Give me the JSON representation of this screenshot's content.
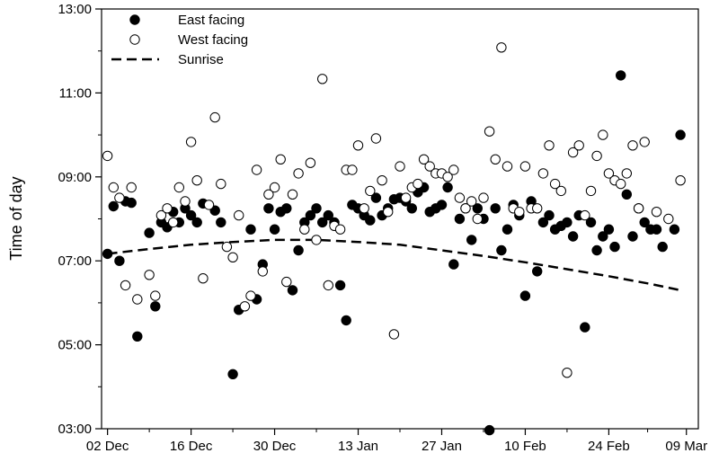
{
  "chart_data": {
    "type": "scatter",
    "title": "",
    "xlabel": "",
    "ylabel": "Time of day",
    "x_axis": {
      "type": "date",
      "range": [
        "2020-12-01",
        "2021-03-11"
      ],
      "ticks": [
        {
          "date": "2020-12-02",
          "label": "02 Dec"
        },
        {
          "date": "2020-12-16",
          "label": "16 Dec"
        },
        {
          "date": "2020-12-30",
          "label": "30 Dec"
        },
        {
          "date": "2021-01-13",
          "label": "13 Jan"
        },
        {
          "date": "2021-01-27",
          "label": "27 Jan"
        },
        {
          "date": "2021-02-10",
          "label": "10 Feb"
        },
        {
          "date": "2021-02-24",
          "label": "24 Feb"
        },
        {
          "date": "2021-03-09",
          "label": "09 Mar"
        }
      ]
    },
    "y_axis": {
      "unit": "time",
      "range": [
        "03:00",
        "13:00"
      ],
      "ticks": [
        "03:00",
        "05:00",
        "07:00",
        "09:00",
        "11:00",
        "13:00"
      ]
    },
    "grid": false,
    "legend": {
      "position": "top-left",
      "items": [
        {
          "label": "East facing",
          "marker": "filled-circle"
        },
        {
          "label": "West facing",
          "marker": "open-circle"
        },
        {
          "label": "Sunrise",
          "marker": "dashed-line"
        }
      ]
    },
    "series": [
      {
        "name": "East facing",
        "marker": "filled-circle",
        "color": "#000000",
        "points": [
          [
            "2020-12-02",
            "07:10"
          ],
          [
            "2020-12-03",
            "08:18"
          ],
          [
            "2020-12-04",
            "07:00"
          ],
          [
            "2020-12-05",
            "08:25"
          ],
          [
            "2020-12-06",
            "08:23"
          ],
          [
            "2020-12-07",
            "05:12"
          ],
          [
            "2020-12-09",
            "07:40"
          ],
          [
            "2020-12-10",
            "05:55"
          ],
          [
            "2020-12-11",
            "07:55"
          ],
          [
            "2020-12-12",
            "07:48"
          ],
          [
            "2020-12-13",
            "08:10"
          ],
          [
            "2020-12-14",
            "07:55"
          ],
          [
            "2020-12-15",
            "08:15"
          ],
          [
            "2020-12-16",
            "08:05"
          ],
          [
            "2020-12-17",
            "07:55"
          ],
          [
            "2020-12-18",
            "08:22"
          ],
          [
            "2020-12-20",
            "08:12"
          ],
          [
            "2020-12-21",
            "07:55"
          ],
          [
            "2020-12-23",
            "04:18"
          ],
          [
            "2020-12-24",
            "05:50"
          ],
          [
            "2020-12-26",
            "07:45"
          ],
          [
            "2020-12-27",
            "06:05"
          ],
          [
            "2020-12-28",
            "06:55"
          ],
          [
            "2020-12-29",
            "08:15"
          ],
          [
            "2020-12-30",
            "07:45"
          ],
          [
            "2020-12-31",
            "08:10"
          ],
          [
            "2021-01-01",
            "08:15"
          ],
          [
            "2021-01-02",
            "06:18"
          ],
          [
            "2021-01-03",
            "07:15"
          ],
          [
            "2021-01-04",
            "07:55"
          ],
          [
            "2021-01-05",
            "08:05"
          ],
          [
            "2021-01-06",
            "08:15"
          ],
          [
            "2021-01-07",
            "07:55"
          ],
          [
            "2021-01-08",
            "08:05"
          ],
          [
            "2021-01-09",
            "07:55"
          ],
          [
            "2021-01-10",
            "06:25"
          ],
          [
            "2021-01-11",
            "05:35"
          ],
          [
            "2021-01-12",
            "08:20"
          ],
          [
            "2021-01-13",
            "08:15"
          ],
          [
            "2021-01-14",
            "08:05"
          ],
          [
            "2021-01-15",
            "07:58"
          ],
          [
            "2021-01-16",
            "08:30"
          ],
          [
            "2021-01-17",
            "08:05"
          ],
          [
            "2021-01-18",
            "08:15"
          ],
          [
            "2021-01-19",
            "08:28"
          ],
          [
            "2021-01-20",
            "08:30"
          ],
          [
            "2021-01-21",
            "08:25"
          ],
          [
            "2021-01-22",
            "08:15"
          ],
          [
            "2021-01-23",
            "08:38"
          ],
          [
            "2021-01-24",
            "08:45"
          ],
          [
            "2021-01-25",
            "08:10"
          ],
          [
            "2021-01-26",
            "08:15"
          ],
          [
            "2021-01-27",
            "08:20"
          ],
          [
            "2021-01-28",
            "08:45"
          ],
          [
            "2021-01-29",
            "06:55"
          ],
          [
            "2021-01-30",
            "08:00"
          ],
          [
            "2021-01-31",
            "08:15"
          ],
          [
            "2021-02-01",
            "07:30"
          ],
          [
            "2021-02-02",
            "08:15"
          ],
          [
            "2021-02-03",
            "08:00"
          ],
          [
            "2021-02-04",
            "02:58"
          ],
          [
            "2021-02-05",
            "08:15"
          ],
          [
            "2021-02-06",
            "07:15"
          ],
          [
            "2021-02-07",
            "07:45"
          ],
          [
            "2021-02-08",
            "08:20"
          ],
          [
            "2021-02-09",
            "08:05"
          ],
          [
            "2021-02-10",
            "06:10"
          ],
          [
            "2021-02-11",
            "08:25"
          ],
          [
            "2021-02-12",
            "06:45"
          ],
          [
            "2021-02-13",
            "07:55"
          ],
          [
            "2021-02-14",
            "08:05"
          ],
          [
            "2021-02-15",
            "07:45"
          ],
          [
            "2021-02-16",
            "07:50"
          ],
          [
            "2021-02-17",
            "07:55"
          ],
          [
            "2021-02-18",
            "07:35"
          ],
          [
            "2021-02-19",
            "08:05"
          ],
          [
            "2021-02-20",
            "05:25"
          ],
          [
            "2021-02-21",
            "07:55"
          ],
          [
            "2021-02-22",
            "07:15"
          ],
          [
            "2021-02-23",
            "07:35"
          ],
          [
            "2021-02-24",
            "07:45"
          ],
          [
            "2021-02-25",
            "07:20"
          ],
          [
            "2021-02-26",
            "11:25"
          ],
          [
            "2021-02-27",
            "08:35"
          ],
          [
            "2021-02-28",
            "07:35"
          ],
          [
            "2021-03-01",
            "08:15"
          ],
          [
            "2021-03-02",
            "07:55"
          ],
          [
            "2021-03-03",
            "07:45"
          ],
          [
            "2021-03-04",
            "07:45"
          ],
          [
            "2021-03-05",
            "07:20"
          ],
          [
            "2021-03-07",
            "07:45"
          ],
          [
            "2021-03-08",
            "10:00"
          ]
        ]
      },
      {
        "name": "West facing",
        "marker": "open-circle",
        "color": "#000000",
        "points": [
          [
            "2020-12-02",
            "09:30"
          ],
          [
            "2020-12-03",
            "08:45"
          ],
          [
            "2020-12-04",
            "08:30"
          ],
          [
            "2020-12-05",
            "06:25"
          ],
          [
            "2020-12-06",
            "08:45"
          ],
          [
            "2020-12-07",
            "06:05"
          ],
          [
            "2020-12-09",
            "06:40"
          ],
          [
            "2020-12-10",
            "06:10"
          ],
          [
            "2020-12-11",
            "08:05"
          ],
          [
            "2020-12-12",
            "08:15"
          ],
          [
            "2020-12-13",
            "07:55"
          ],
          [
            "2020-12-14",
            "08:45"
          ],
          [
            "2020-12-15",
            "08:25"
          ],
          [
            "2020-12-16",
            "09:50"
          ],
          [
            "2020-12-17",
            "08:55"
          ],
          [
            "2020-12-18",
            "06:35"
          ],
          [
            "2020-12-19",
            "08:20"
          ],
          [
            "2020-12-20",
            "10:25"
          ],
          [
            "2020-12-21",
            "08:50"
          ],
          [
            "2020-12-22",
            "07:20"
          ],
          [
            "2020-12-23",
            "07:05"
          ],
          [
            "2020-12-24",
            "08:05"
          ],
          [
            "2020-12-25",
            "05:55"
          ],
          [
            "2020-12-26",
            "06:10"
          ],
          [
            "2020-12-27",
            "09:10"
          ],
          [
            "2020-12-28",
            "06:45"
          ],
          [
            "2020-12-29",
            "08:35"
          ],
          [
            "2020-12-30",
            "08:45"
          ],
          [
            "2020-12-31",
            "09:25"
          ],
          [
            "2021-01-01",
            "06:30"
          ],
          [
            "2021-01-02",
            "08:35"
          ],
          [
            "2021-01-03",
            "09:05"
          ],
          [
            "2021-01-04",
            "07:45"
          ],
          [
            "2021-01-05",
            "09:20"
          ],
          [
            "2021-01-06",
            "07:30"
          ],
          [
            "2021-01-07",
            "11:20"
          ],
          [
            "2021-01-08",
            "06:25"
          ],
          [
            "2021-01-09",
            "07:50"
          ],
          [
            "2021-01-10",
            "07:45"
          ],
          [
            "2021-01-11",
            "09:10"
          ],
          [
            "2021-01-12",
            "09:10"
          ],
          [
            "2021-01-13",
            "09:45"
          ],
          [
            "2021-01-14",
            "08:15"
          ],
          [
            "2021-01-15",
            "08:40"
          ],
          [
            "2021-01-16",
            "09:55"
          ],
          [
            "2021-01-17",
            "08:55"
          ],
          [
            "2021-01-18",
            "08:10"
          ],
          [
            "2021-01-19",
            "05:15"
          ],
          [
            "2021-01-20",
            "09:15"
          ],
          [
            "2021-01-21",
            "08:30"
          ],
          [
            "2021-01-22",
            "08:45"
          ],
          [
            "2021-01-23",
            "08:50"
          ],
          [
            "2021-01-24",
            "09:25"
          ],
          [
            "2021-01-25",
            "09:15"
          ],
          [
            "2021-01-26",
            "09:05"
          ],
          [
            "2021-01-27",
            "09:05"
          ],
          [
            "2021-01-28",
            "09:00"
          ],
          [
            "2021-01-29",
            "09:10"
          ],
          [
            "2021-01-30",
            "08:30"
          ],
          [
            "2021-01-31",
            "08:15"
          ],
          [
            "2021-02-01",
            "08:25"
          ],
          [
            "2021-02-02",
            "08:00"
          ],
          [
            "2021-02-03",
            "08:30"
          ],
          [
            "2021-02-04",
            "10:05"
          ],
          [
            "2021-02-05",
            "09:25"
          ],
          [
            "2021-02-06",
            "12:05"
          ],
          [
            "2021-02-07",
            "09:15"
          ],
          [
            "2021-02-08",
            "08:15"
          ],
          [
            "2021-02-09",
            "08:10"
          ],
          [
            "2021-02-10",
            "09:15"
          ],
          [
            "2021-02-11",
            "08:15"
          ],
          [
            "2021-02-12",
            "08:15"
          ],
          [
            "2021-02-13",
            "09:05"
          ],
          [
            "2021-02-14",
            "09:45"
          ],
          [
            "2021-02-15",
            "08:50"
          ],
          [
            "2021-02-16",
            "08:40"
          ],
          [
            "2021-02-17",
            "04:20"
          ],
          [
            "2021-02-18",
            "09:35"
          ],
          [
            "2021-02-19",
            "09:45"
          ],
          [
            "2021-02-20",
            "08:05"
          ],
          [
            "2021-02-21",
            "08:40"
          ],
          [
            "2021-02-22",
            "09:30"
          ],
          [
            "2021-02-23",
            "10:00"
          ],
          [
            "2021-02-24",
            "09:05"
          ],
          [
            "2021-02-25",
            "08:55"
          ],
          [
            "2021-02-26",
            "08:50"
          ],
          [
            "2021-02-27",
            "09:05"
          ],
          [
            "2021-02-28",
            "09:45"
          ],
          [
            "2021-03-01",
            "08:15"
          ],
          [
            "2021-03-02",
            "09:50"
          ],
          [
            "2021-03-04",
            "08:10"
          ],
          [
            "2021-03-06",
            "08:00"
          ],
          [
            "2021-03-08",
            "08:55"
          ]
        ]
      },
      {
        "name": "Sunrise",
        "line_style": "dashed",
        "color": "#000000",
        "points": [
          [
            "2020-12-02",
            "07:10"
          ],
          [
            "2020-12-09",
            "07:17"
          ],
          [
            "2020-12-16",
            "07:23"
          ],
          [
            "2020-12-23",
            "07:27"
          ],
          [
            "2020-12-30",
            "07:30"
          ],
          [
            "2021-01-06",
            "07:30"
          ],
          [
            "2021-01-13",
            "07:27"
          ],
          [
            "2021-01-20",
            "07:23"
          ],
          [
            "2021-01-27",
            "07:15"
          ],
          [
            "2021-02-03",
            "07:07"
          ],
          [
            "2021-02-10",
            "06:58"
          ],
          [
            "2021-02-17",
            "06:48"
          ],
          [
            "2021-02-24",
            "06:38"
          ],
          [
            "2021-03-03",
            "06:27"
          ],
          [
            "2021-03-08",
            "06:18"
          ]
        ]
      }
    ]
  }
}
